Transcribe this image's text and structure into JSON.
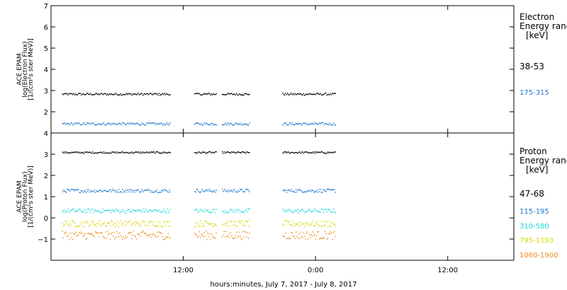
{
  "chart_data": [
    {
      "type": "scatter",
      "ylabel_lines": [
        "ACE EPAM",
        "log(Electron Flux)",
        "[1/(cm²s ster MeV)]"
      ],
      "ylim": [
        1,
        7
      ],
      "yticks": [
        1,
        2,
        3,
        4,
        5,
        6,
        7
      ],
      "ytick_labels": [
        "",
        "2",
        "3",
        "4",
        "5",
        "6",
        "7"
      ],
      "legend_title": [
        "Electron",
        "Energy ranges",
        "[keV]"
      ],
      "series": [
        {
          "name": "38-53",
          "color": "#000000",
          "level": 2.85,
          "jitter": 0.05
        },
        {
          "name": "175-315",
          "color": "#1f77d0",
          "level": 1.45,
          "jitter": 0.06
        }
      ]
    },
    {
      "type": "scatter",
      "ylabel_lines": [
        "ACE EPAM",
        "log(Proton Flux)",
        "[1/(cm²s ster MeV)]"
      ],
      "ylim": [
        -2,
        4
      ],
      "yticks": [
        -1,
        0,
        1,
        2,
        3,
        4
      ],
      "ytick_labels": [
        "−1",
        "0",
        "1",
        "2",
        "3",
        "4"
      ],
      "legend_title": [
        "Proton",
        "Energy ranges",
        "[keV]"
      ],
      "series": [
        {
          "name": "47-68",
          "color": "#000000",
          "level": 3.1,
          "jitter": 0.04
        },
        {
          "name": "115-195",
          "color": "#1f77d0",
          "level": 1.3,
          "jitter": 0.08
        },
        {
          "name": "310-580",
          "color": "#22d6d6",
          "level": 0.35,
          "jitter": 0.1
        },
        {
          "name": "795-1193",
          "color": "#d6d600",
          "level": -0.25,
          "jitter": 0.15
        },
        {
          "name": "1060-1900",
          "color": "#f08c1e",
          "level": -0.8,
          "jitter": 0.2
        }
      ]
    }
  ],
  "x_axis": {
    "label": "hours:minutes, July  7, 2017 - July  8, 2017",
    "range_hours": [
      0,
      42
    ],
    "tick_hours": [
      12,
      24,
      36
    ],
    "tick_labels": [
      "12:00",
      "0:00",
      "12:00"
    ],
    "data_segments_hours": [
      [
        1,
        10.8
      ],
      [
        13,
        15
      ],
      [
        15.5,
        18
      ],
      [
        21,
        25.8
      ]
    ]
  }
}
